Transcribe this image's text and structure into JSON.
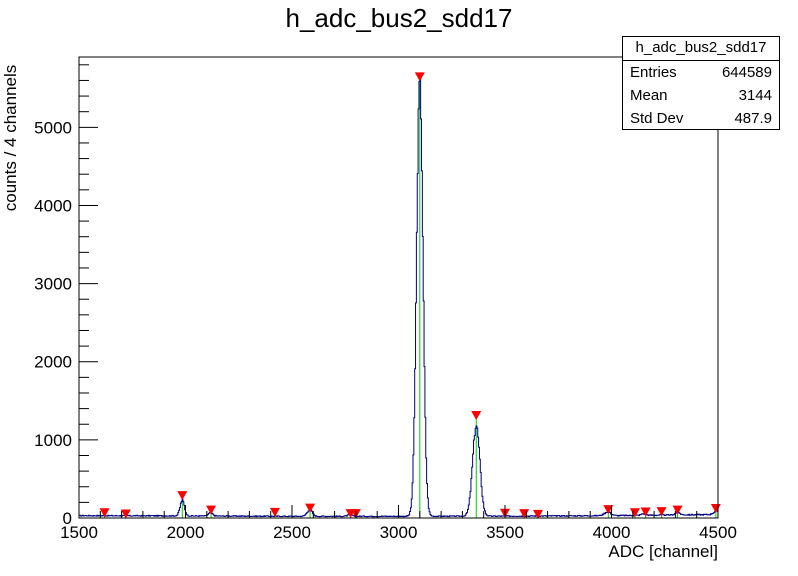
{
  "chart_data": {
    "type": "histogram",
    "title": "h_adc_bus2_sdd17",
    "xlabel": "ADC [channel]",
    "ylabel": "counts / 4 channels",
    "xlim": [
      1500,
      4500
    ],
    "ylim": [
      0,
      5900
    ],
    "x_ticks": [
      1500,
      2000,
      2500,
      3000,
      3500,
      4000,
      4500
    ],
    "y_ticks": [
      0,
      1000,
      2000,
      3000,
      4000,
      5000
    ],
    "bin_width": 4,
    "grid": false,
    "line_color": "#000080",
    "stats": {
      "name": "h_adc_bus2_sdd17",
      "entries_label": "Entries",
      "entries": "644589",
      "mean_label": "Mean",
      "mean": "3144",
      "stddev_label": "Std Dev",
      "stddev": "487.9"
    },
    "baseline": [
      [
        1500,
        30
      ],
      [
        1900,
        28
      ],
      [
        2500,
        22
      ],
      [
        3000,
        22
      ],
      [
        3500,
        24
      ],
      [
        4000,
        30
      ],
      [
        4500,
        45
      ]
    ],
    "peaks": [
      {
        "center": 1985,
        "height": 200,
        "sigma": 10
      },
      {
        "center": 2118,
        "height": 40,
        "sigma": 10
      },
      {
        "center": 2583,
        "height": 85,
        "sigma": 12
      },
      {
        "center": 2772,
        "height": 20,
        "sigma": 10
      },
      {
        "center": 3100,
        "height": 5570,
        "sigma": 15
      },
      {
        "center": 3365,
        "height": 1160,
        "sigma": 17
      },
      {
        "center": 3982,
        "height": 50,
        "sigma": 15
      },
      {
        "center": 4150,
        "height": 20,
        "sigma": 10
      },
      {
        "center": 4310,
        "height": 30,
        "sigma": 12
      },
      {
        "center": 4490,
        "height": 40,
        "sigma": 12
      }
    ],
    "peak_markers": [
      {
        "x": 1620,
        "y": 60
      },
      {
        "x": 1720,
        "y": 45
      },
      {
        "x": 1985,
        "y": 280
      },
      {
        "x": 2120,
        "y": 95
      },
      {
        "x": 2420,
        "y": 65
      },
      {
        "x": 2585,
        "y": 120
      },
      {
        "x": 2775,
        "y": 50
      },
      {
        "x": 2800,
        "y": 50
      },
      {
        "x": 3100,
        "y": 5640
      },
      {
        "x": 3365,
        "y": 1305
      },
      {
        "x": 3500,
        "y": 55
      },
      {
        "x": 3590,
        "y": 50
      },
      {
        "x": 3655,
        "y": 40
      },
      {
        "x": 3985,
        "y": 100
      },
      {
        "x": 4110,
        "y": 60
      },
      {
        "x": 4160,
        "y": 70
      },
      {
        "x": 4235,
        "y": 75
      },
      {
        "x": 4310,
        "y": 95
      },
      {
        "x": 4490,
        "y": 115
      }
    ],
    "peak_marker_color": "#ff0000",
    "peak_line_color": "#00cc00"
  }
}
